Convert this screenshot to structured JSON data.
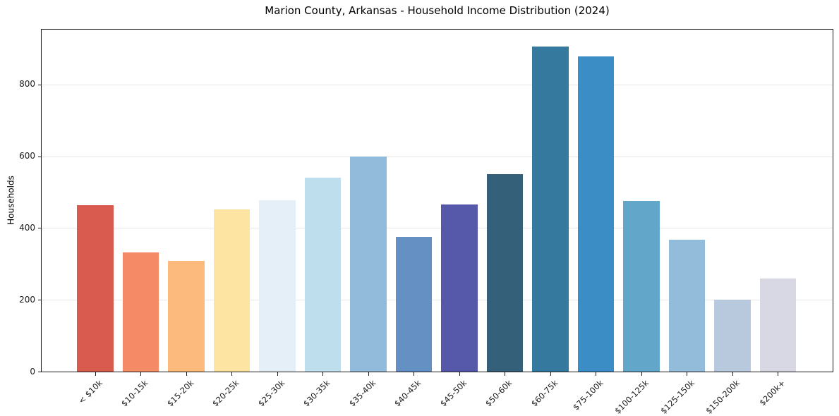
{
  "chart_data": {
    "type": "bar",
    "title": "Marion County, Arkansas - Household Income Distribution (2024)",
    "xlabel": "",
    "ylabel": "Households",
    "ylim": [
      0,
      953
    ],
    "yticks": [
      0,
      200,
      400,
      600,
      800
    ],
    "grid": "horizontal",
    "legend": "none",
    "categories": [
      "< $10k",
      "$10-15k",
      "$15-20k",
      "$20-25k",
      "$25-30k",
      "$30-35k",
      "$35-40k",
      "$40-45k",
      "$45-50k",
      "$50-60k",
      "$60-75k",
      "$75-100k",
      "$100-125k",
      "$125-150k",
      "$150-200k",
      "$200k+"
    ],
    "values": [
      463,
      332,
      308,
      452,
      478,
      540,
      600,
      375,
      465,
      551,
      905,
      878,
      475,
      368,
      200,
      260
    ],
    "bar_colors": [
      "#d95b50",
      "#f58a66",
      "#fcbb7c",
      "#fde4a2",
      "#e4eff7",
      "#bfdeed",
      "#92bbdb",
      "#6590c4",
      "#5659a9",
      "#34607a",
      "#35799f",
      "#3a8ec5",
      "#62a6ca",
      "#93bbda",
      "#b9c9dd",
      "#d7d8e4"
    ],
    "axis_color": "#1a1a1a",
    "grid_color": "#e7e7e7",
    "background_color": "#ffffff"
  }
}
